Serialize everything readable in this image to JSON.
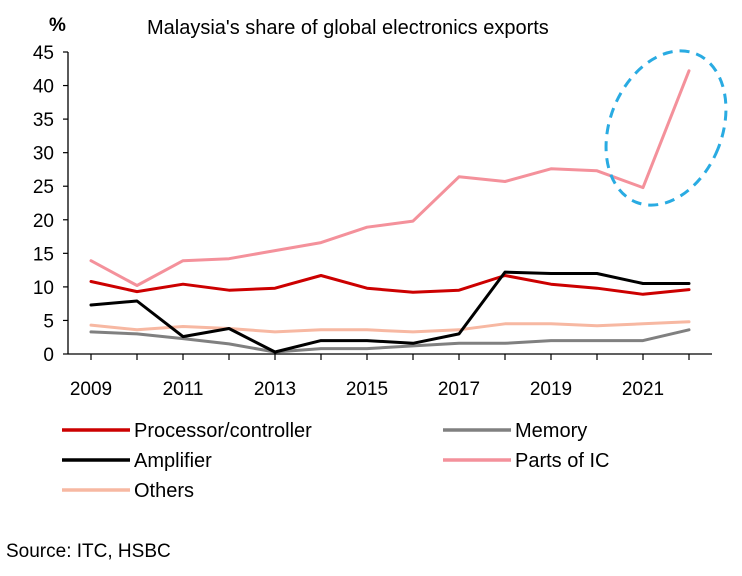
{
  "chart_data": {
    "type": "line",
    "title": "Malaysia's share of global electronics exports",
    "y_unit": "%",
    "xlabel": "",
    "ylabel": "",
    "x": [
      2009,
      2010,
      2011,
      2012,
      2013,
      2014,
      2015,
      2016,
      2017,
      2018,
      2019,
      2020,
      2021,
      2022
    ],
    "x_ticks": [
      "2009",
      "2011",
      "2013",
      "2015",
      "2017",
      "2019",
      "2021"
    ],
    "y_ticks": [
      "0",
      "5",
      "10",
      "15",
      "20",
      "25",
      "30",
      "35",
      "40",
      "45"
    ],
    "ylim": [
      0,
      45
    ],
    "grid": false,
    "legend_position": "bottom",
    "series": [
      {
        "name": "Processor/controller",
        "color": "#cc0000",
        "values": [
          10.8,
          9.3,
          10.4,
          9.5,
          9.8,
          11.7,
          9.8,
          9.2,
          9.5,
          11.7,
          10.4,
          9.8,
          8.9,
          9.6
        ]
      },
      {
        "name": "Memory",
        "color": "#808080",
        "values": [
          3.3,
          3.0,
          2.3,
          1.5,
          0.3,
          0.8,
          0.8,
          1.2,
          1.6,
          1.6,
          2.0,
          2.0,
          2.0,
          3.6
        ]
      },
      {
        "name": "Amplifier",
        "color": "#000000",
        "values": [
          7.3,
          7.9,
          2.6,
          3.8,
          0.3,
          2.0,
          2.0,
          1.6,
          3.0,
          12.2,
          12.0,
          12.0,
          10.5,
          10.5
        ]
      },
      {
        "name": "Parts of IC",
        "color": "#f4919b",
        "values": [
          13.9,
          10.2,
          13.9,
          14.2,
          15.4,
          16.6,
          18.9,
          19.8,
          26.4,
          25.7,
          27.6,
          27.3,
          24.8,
          42.2
        ]
      },
      {
        "name": "Others",
        "color": "#f7b8a2",
        "values": [
          4.3,
          3.6,
          4.1,
          3.8,
          3.3,
          3.6,
          3.6,
          3.3,
          3.6,
          4.5,
          4.5,
          4.2,
          4.5,
          4.8
        ]
      }
    ],
    "annotation": {
      "type": "dashed-ellipse",
      "color": "#29abe2",
      "highlights": "Parts of IC 2021-2022"
    }
  },
  "source": "Source: ITC, HSBC"
}
